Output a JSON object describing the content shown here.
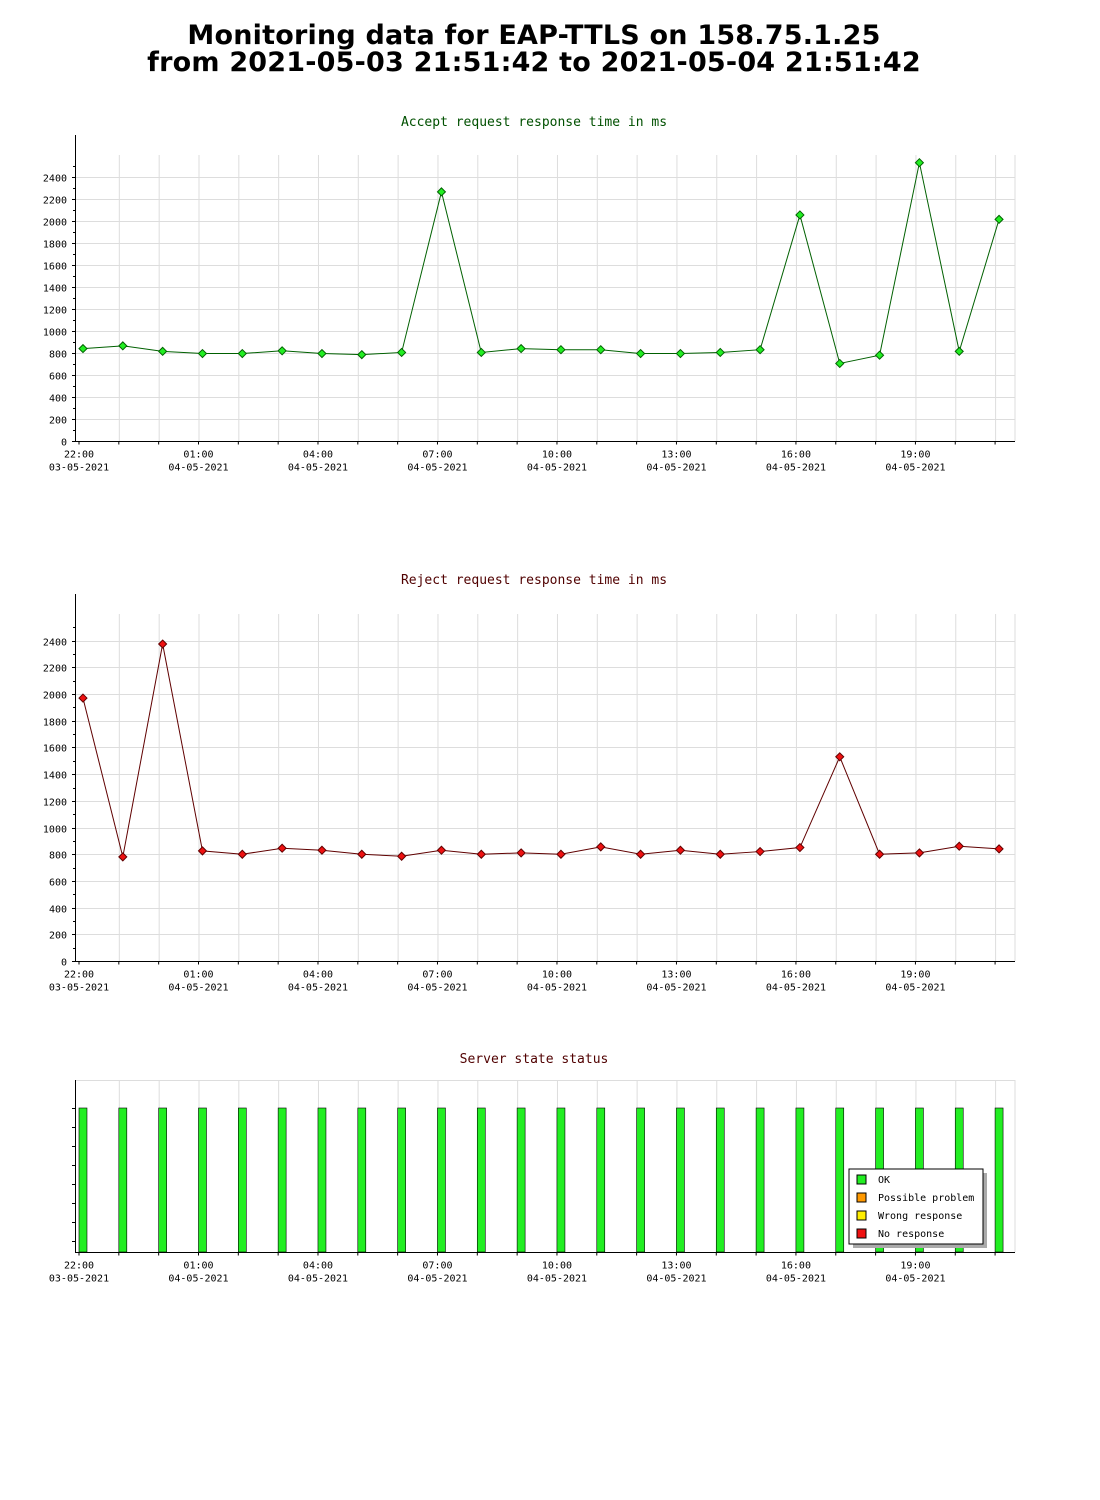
{
  "page": {
    "title_line1": "Monitoring data for EAP-TTLS on 158.75.1.25",
    "title_line2": "from 2021-05-03 21:51:42 to 2021-05-04 21:51:42"
  },
  "colors": {
    "accept_title": "#005000",
    "reject_title": "#500000",
    "status_title": "#500000",
    "accept_line": "#006000",
    "accept_marker": "#22ee22",
    "reject_line": "#600000",
    "reject_marker": "#ee1111",
    "ok": "#22ee22",
    "possible_problem": "#ff9900",
    "wrong_response": "#ffee00",
    "no_response": "#ee1111",
    "grid": "#dddddd"
  },
  "x_axis": {
    "ticks": [
      {
        "time": "22:00",
        "date": "03-05-2021"
      },
      {
        "time": "01:00",
        "date": "04-05-2021"
      },
      {
        "time": "04:00",
        "date": "04-05-2021"
      },
      {
        "time": "07:00",
        "date": "04-05-2021"
      },
      {
        "time": "10:00",
        "date": "04-05-2021"
      },
      {
        "time": "13:00",
        "date": "04-05-2021"
      },
      {
        "time": "16:00",
        "date": "04-05-2021"
      },
      {
        "time": "19:00",
        "date": "04-05-2021"
      }
    ]
  },
  "chart_data": [
    {
      "type": "line",
      "title": "Accept request response time in ms",
      "x_hours_from_2200": [
        0.1,
        1.1,
        2.1,
        3.1,
        4.1,
        5.1,
        6.1,
        7.1,
        8.1,
        9.1,
        10.1,
        11.1,
        12.1,
        13.1,
        14.1,
        15.1,
        16.1,
        17.1,
        18.1,
        19.1,
        20.1,
        21.1,
        22.1,
        23.1
      ],
      "values": [
        840,
        865,
        815,
        795,
        795,
        820,
        795,
        785,
        805,
        2265,
        805,
        840,
        830,
        830,
        795,
        795,
        805,
        830,
        2055,
        705,
        780,
        2530,
        815,
        2015
      ],
      "ylim": [
        0,
        2600
      ],
      "yticks": [
        0,
        200,
        400,
        600,
        800,
        1000,
        1200,
        1400,
        1600,
        1800,
        2000,
        2200,
        2400
      ],
      "grid": true
    },
    {
      "type": "line",
      "title": "Reject request response time in ms",
      "x_hours_from_2200": [
        0.1,
        1.1,
        2.1,
        3.1,
        4.1,
        5.1,
        6.1,
        7.1,
        8.1,
        9.1,
        10.1,
        11.1,
        12.1,
        13.1,
        14.1,
        15.1,
        16.1,
        17.1,
        18.1,
        19.1,
        20.1,
        21.1,
        22.1,
        23.1
      ],
      "values": [
        1970,
        780,
        2375,
        825,
        800,
        845,
        830,
        800,
        785,
        830,
        800,
        810,
        800,
        855,
        800,
        830,
        800,
        820,
        850,
        1530,
        800,
        810,
        860,
        840
      ],
      "ylim": [
        0,
        2600
      ],
      "yticks": [
        0,
        200,
        400,
        600,
        800,
        1000,
        1200,
        1400,
        1600,
        1800,
        2000,
        2200,
        2400
      ],
      "grid": true
    },
    {
      "type": "bar",
      "title": "Server state status",
      "x_hours_from_2200": [
        0.1,
        1.1,
        2.1,
        3.1,
        4.1,
        5.1,
        6.1,
        7.1,
        8.1,
        9.1,
        10.1,
        11.1,
        12.1,
        13.1,
        14.1,
        15.1,
        16.1,
        17.1,
        18.1,
        19.1,
        20.1,
        21.1,
        22.1,
        23.1
      ],
      "states": [
        "OK",
        "OK",
        "OK",
        "OK",
        "OK",
        "OK",
        "OK",
        "OK",
        "OK",
        "OK",
        "OK",
        "OK",
        "OK",
        "OK",
        "OK",
        "OK",
        "OK",
        "OK",
        "OK",
        "OK",
        "OK",
        "OK",
        "OK",
        "OK"
      ],
      "legend": [
        "OK",
        "Possible problem",
        "Wrong response",
        "No response"
      ],
      "legend_position": "bottom-right"
    }
  ]
}
